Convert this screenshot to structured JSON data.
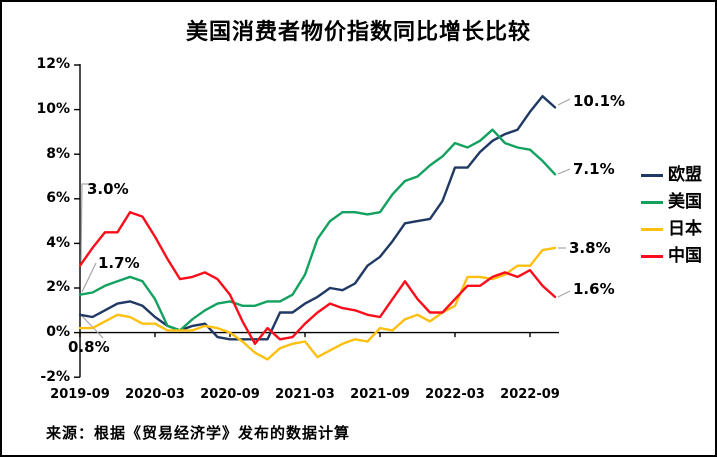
{
  "title": "美国消费者物价指数同比增长比较",
  "source_note": "来源：根据《贸易经济学》发布的数据计算",
  "colors": {
    "background": "#ffffff",
    "frame_border": "#000000",
    "axis": "#000000",
    "leader_line": "#a6a6a6"
  },
  "chart_data": {
    "type": "line",
    "title": "美国消费者物价指数同比增长比较",
    "xlabel": "",
    "ylabel": "",
    "ylim": [
      -2,
      12
    ],
    "grid": false,
    "legend_position": "right",
    "x_tick_labels": [
      "2019-09",
      "2020-03",
      "2020-09",
      "2021-03",
      "2021-09",
      "2022-03",
      "2022-09"
    ],
    "y_tick_labels": [
      "12%",
      "10%",
      "8%",
      "6%",
      "4%",
      "2%",
      "0%",
      "-2%"
    ],
    "x_months": [
      "2019-09",
      "2019-10",
      "2019-11",
      "2019-12",
      "2020-01",
      "2020-02",
      "2020-03",
      "2020-04",
      "2020-05",
      "2020-06",
      "2020-07",
      "2020-08",
      "2020-09",
      "2020-10",
      "2020-11",
      "2020-12",
      "2021-01",
      "2021-02",
      "2021-03",
      "2021-04",
      "2021-05",
      "2021-06",
      "2021-07",
      "2021-08",
      "2021-09",
      "2021-10",
      "2021-11",
      "2021-12",
      "2022-01",
      "2022-02",
      "2022-03",
      "2022-04",
      "2022-05",
      "2022-06",
      "2022-07",
      "2022-08",
      "2022-09",
      "2022-10",
      "2022-11"
    ],
    "series": [
      {
        "name": "欧盟",
        "color": "#1f3864",
        "values": [
          0.8,
          0.7,
          1.0,
          1.3,
          1.4,
          1.2,
          0.7,
          0.3,
          0.1,
          0.3,
          0.4,
          -0.2,
          -0.3,
          -0.3,
          -0.3,
          -0.3,
          0.9,
          0.9,
          1.3,
          1.6,
          2.0,
          1.9,
          2.2,
          3.0,
          3.4,
          4.1,
          4.9,
          5.0,
          5.1,
          5.9,
          7.4,
          7.4,
          8.1,
          8.6,
          8.9,
          9.1,
          9.9,
          10.6,
          10.1
        ]
      },
      {
        "name": "美国",
        "color": "#12a15e",
        "values": [
          1.7,
          1.8,
          2.1,
          2.3,
          2.5,
          2.3,
          1.5,
          0.3,
          0.1,
          0.6,
          1.0,
          1.3,
          1.4,
          1.2,
          1.2,
          1.4,
          1.4,
          1.7,
          2.6,
          4.2,
          5.0,
          5.4,
          5.4,
          5.3,
          5.4,
          6.2,
          6.8,
          7.0,
          7.5,
          7.9,
          8.5,
          8.3,
          8.6,
          9.1,
          8.5,
          8.3,
          8.2,
          7.7,
          7.1
        ]
      },
      {
        "name": "日本",
        "color": "#fdc010",
        "values": [
          0.2,
          0.2,
          0.5,
          0.8,
          0.7,
          0.4,
          0.4,
          0.1,
          0.1,
          0.1,
          0.3,
          0.2,
          0.0,
          -0.4,
          -0.9,
          -1.2,
          -0.7,
          -0.5,
          -0.4,
          -1.1,
          -0.8,
          -0.5,
          -0.3,
          -0.4,
          0.2,
          0.1,
          0.6,
          0.8,
          0.5,
          0.9,
          1.2,
          2.5,
          2.5,
          2.4,
          2.6,
          3.0,
          3.0,
          3.7,
          3.8
        ]
      },
      {
        "name": "中国",
        "color": "#fb0d1b",
        "values": [
          3.0,
          3.8,
          4.5,
          4.5,
          5.4,
          5.2,
          4.3,
          3.3,
          2.4,
          2.5,
          2.7,
          2.4,
          1.7,
          0.5,
          -0.5,
          0.2,
          -0.3,
          -0.2,
          0.4,
          0.9,
          1.3,
          1.1,
          1.0,
          0.8,
          0.7,
          1.5,
          2.3,
          1.5,
          0.9,
          0.9,
          1.5,
          2.1,
          2.1,
          2.5,
          2.7,
          2.5,
          2.8,
          2.1,
          1.6
        ]
      }
    ],
    "annotations": {
      "start": [
        {
          "label": "3.0%",
          "series": "中国"
        },
        {
          "label": "1.7%",
          "series": "美国"
        },
        {
          "label": "0.8%",
          "series": "欧盟"
        }
      ],
      "end": [
        {
          "label": "10.1%",
          "series": "欧盟"
        },
        {
          "label": "7.1%",
          "series": "美国"
        },
        {
          "label": "3.8%",
          "series": "日本"
        },
        {
          "label": "1.6%",
          "series": "中国"
        }
      ]
    }
  }
}
